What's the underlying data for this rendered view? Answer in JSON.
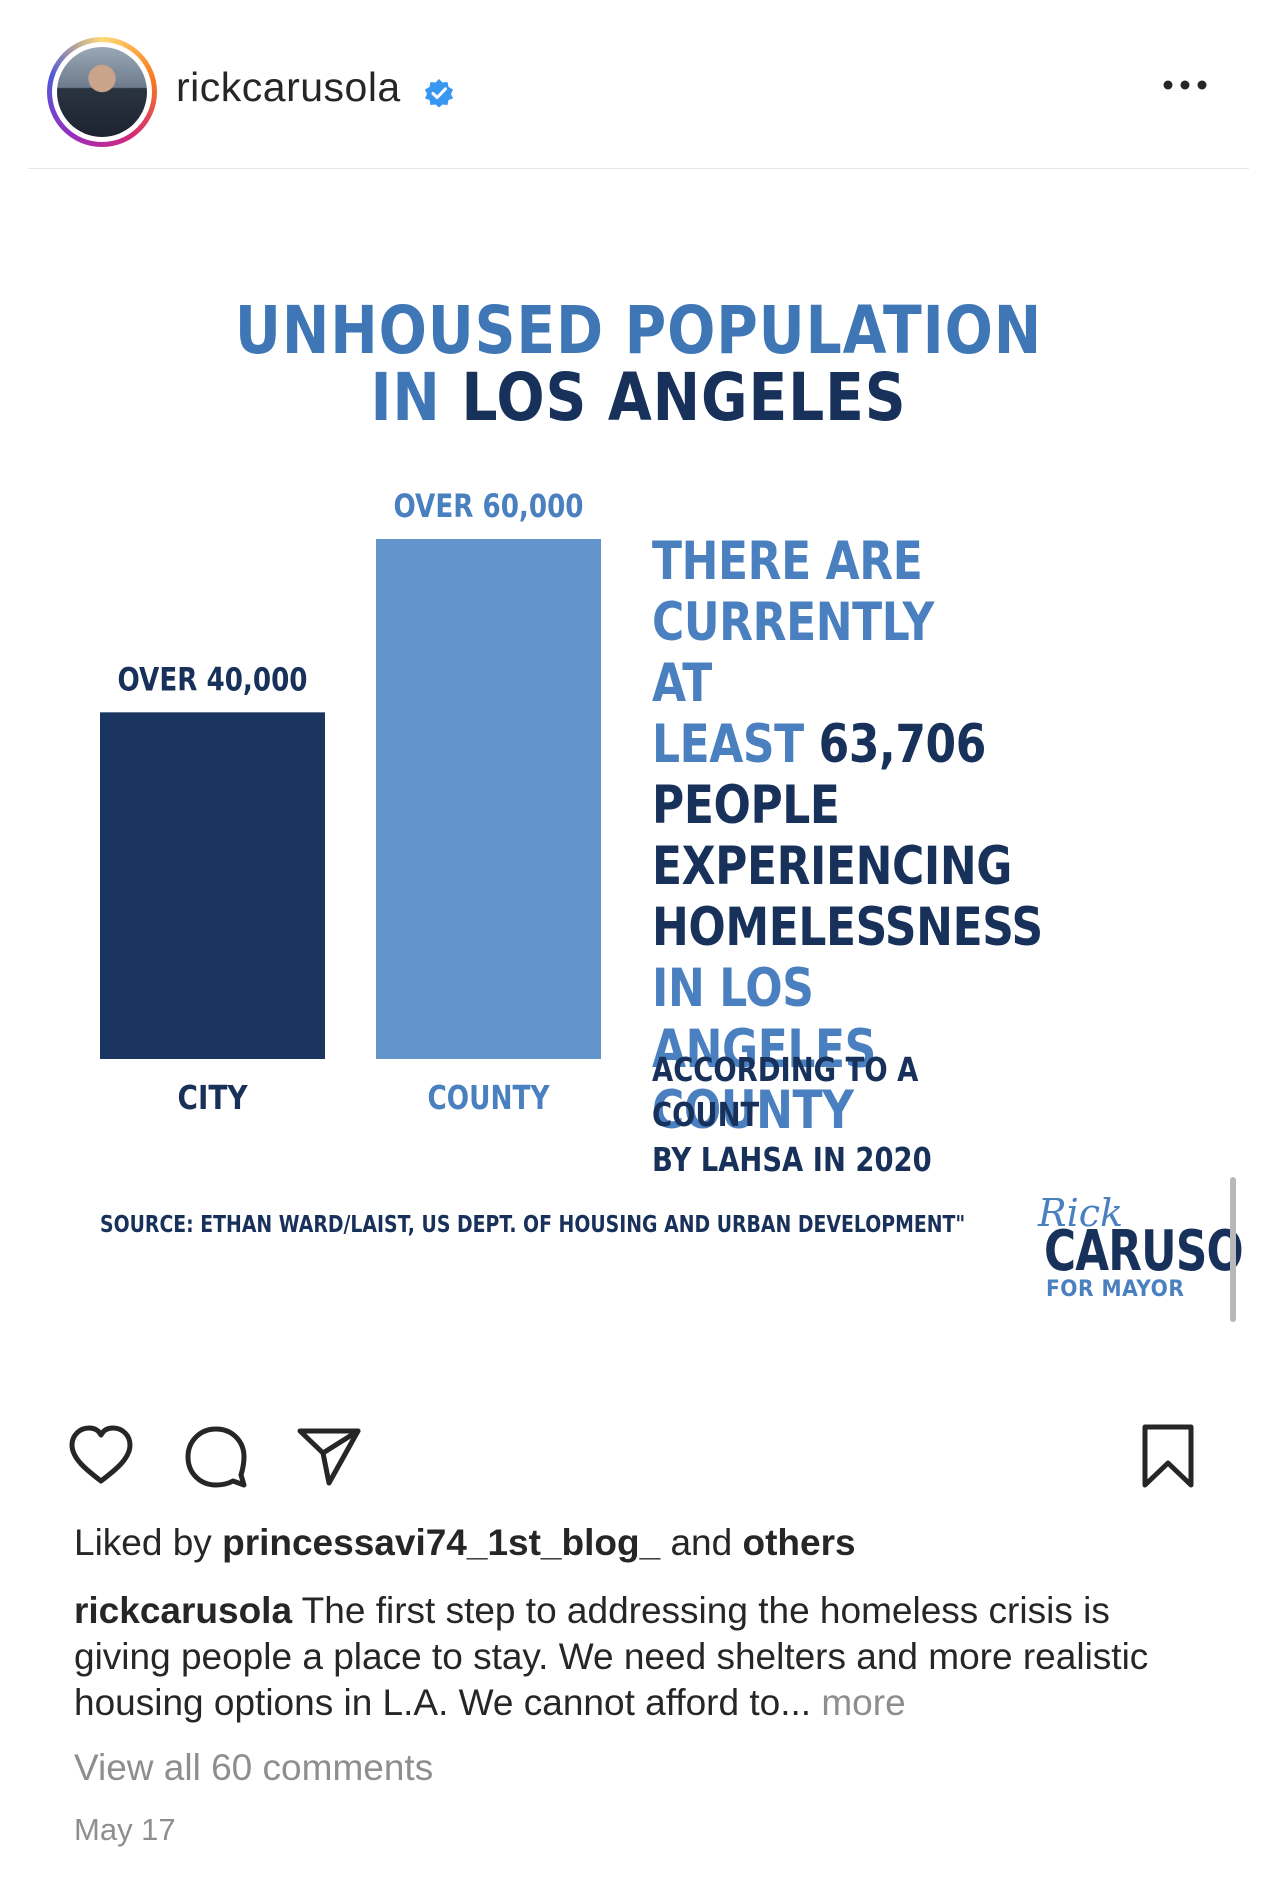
{
  "post": {
    "username": "rickcarusola",
    "verified": true,
    "avatar_icon": "profile-photo",
    "more_icon": "more-horizontal-icon"
  },
  "infographic": {
    "title_line1": "UNHOUSED POPULATION",
    "title_line2_light": "IN",
    "title_line2_dark": "LOS ANGELES",
    "blurb": {
      "l1": "THERE ARE",
      "l2": "CURRENTLY AT",
      "l3_light": "LEAST",
      "l3_dark": "63,706",
      "l4": "PEOPLE",
      "l5": "EXPERIENCING",
      "l6": "HOMELESSNESS",
      "l7": "IN LOS ANGELES",
      "l8": "COUNTY"
    },
    "count_note_line1": "ACCORDING TO A COUNT",
    "count_note_line2": "BY LAHSA IN 2020",
    "source": "SOURCE: ETHAN WARD/LAIST, US DEPT. OF HOUSING AND URBAN DEVELOPMENT\"",
    "logo": {
      "script": "Rick",
      "name": "CARUSO",
      "sub": "FOR MAYOR"
    },
    "colors": {
      "dark_navy": "#18315a",
      "light_blue": "#6394cb",
      "accent_blue": "#3f76b5"
    }
  },
  "chart_data": {
    "type": "bar",
    "categories": [
      "CITY",
      "COUNTY"
    ],
    "values": [
      40000,
      60000
    ],
    "data_labels": [
      "OVER 40,000",
      "OVER 60,000"
    ],
    "colors": [
      "#1a3560",
      "#6394cb"
    ],
    "title": "UNHOUSED POPULATION IN LOS ANGELES",
    "ylim": [
      0,
      60000
    ],
    "grid": false
  },
  "actions": {
    "like_icon": "heart-icon",
    "comment_icon": "comment-icon",
    "share_icon": "share-icon",
    "save_icon": "bookmark-icon"
  },
  "likes": {
    "prefix": "Liked by",
    "user": "princessavi74_1st_blog_",
    "middle": "and",
    "others": "others"
  },
  "caption": {
    "user": "rickcarusola",
    "text": "The first step to addressing the homeless crisis is giving people a place to stay. We need shelters and more realistic housing options in L.A. We cannot afford to...",
    "more": "more"
  },
  "comments": {
    "view_all": "View all 60 comments"
  },
  "date": "May 17"
}
